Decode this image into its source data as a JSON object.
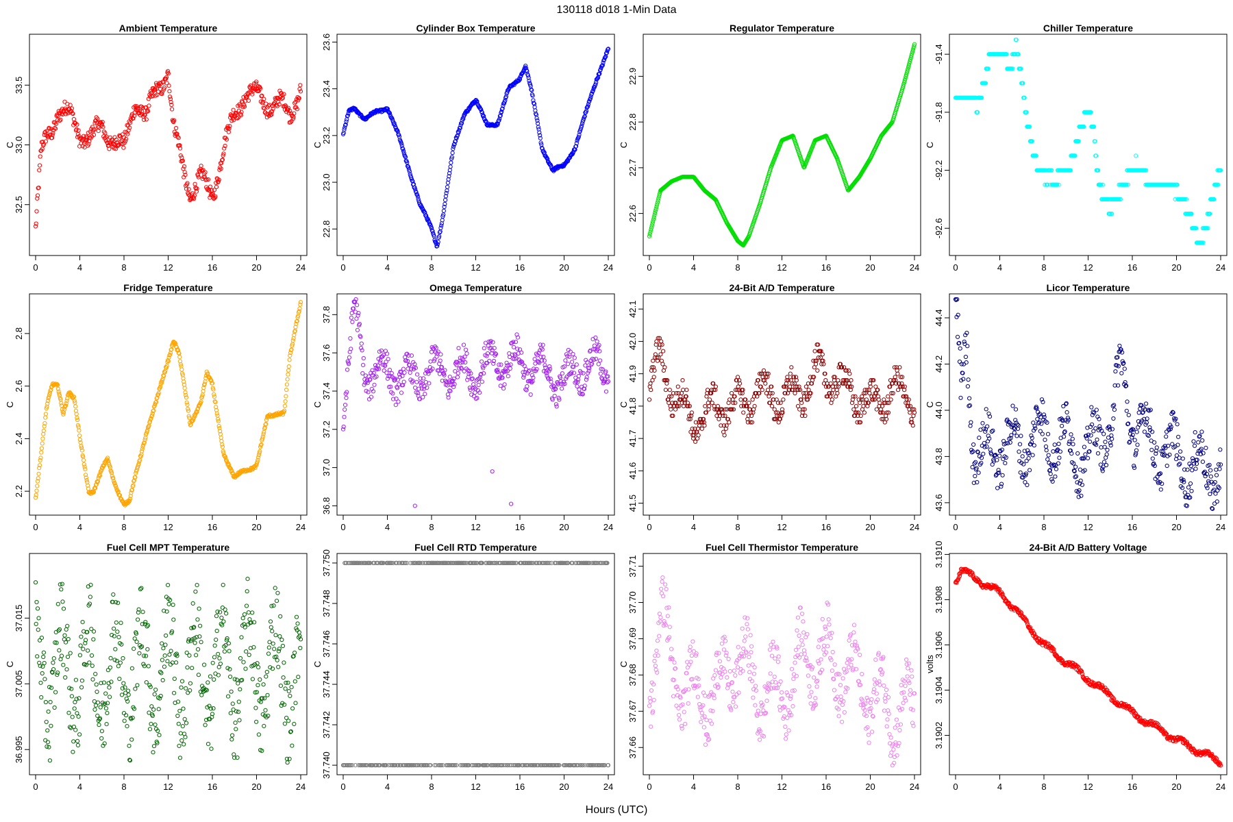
{
  "figure": {
    "title": "130118   d018   1-Min Data",
    "xlabel": "Hours (UTC)"
  },
  "chart_data": [
    {
      "type": "scatter",
      "title": "Ambient Temperature",
      "ylabel": "C",
      "color": "#ff0000",
      "xlim": [
        0,
        24
      ],
      "xticks": [
        0,
        4,
        8,
        12,
        16,
        20,
        24
      ],
      "ylim": [
        32.12,
        33.88
      ],
      "yticks": [
        32.5,
        33.0,
        33.5
      ],
      "yfmt": 1,
      "series_keypoints": {
        "x": [
          0,
          0.5,
          1,
          1.5,
          2,
          3,
          4,
          5,
          6,
          7,
          8,
          9,
          10,
          11,
          12,
          12.5,
          13,
          14,
          15,
          16,
          17,
          18,
          19,
          20,
          21,
          22,
          23,
          24
        ],
        "y": [
          32.3,
          32.9,
          33.05,
          33.15,
          33.3,
          33.25,
          33.1,
          33.05,
          33.15,
          33.05,
          32.95,
          33.4,
          33.2,
          33.5,
          33.6,
          33.1,
          32.95,
          32.6,
          32.7,
          32.6,
          32.95,
          33.25,
          33.45,
          33.4,
          33.35,
          33.35,
          33.25,
          33.5
        ]
      },
      "noise": 0.12
    },
    {
      "type": "scatter",
      "title": "Cylinder Box Temperature",
      "ylabel": "C",
      "color": "#0000ff",
      "xlim": [
        0,
        24
      ],
      "xticks": [
        0,
        4,
        8,
        12,
        16,
        20,
        24
      ],
      "ylim": [
        22.71,
        23.61
      ],
      "yticks": [
        22.8,
        23.0,
        23.2,
        23.4,
        23.6
      ],
      "yfmt": 1,
      "series_keypoints": {
        "x": [
          0,
          0.5,
          1,
          2,
          3,
          4,
          5,
          6,
          7,
          8,
          8.5,
          9,
          10,
          11,
          12,
          13,
          14,
          15,
          16,
          16.5,
          17,
          18,
          19,
          20,
          21,
          22,
          23,
          24
        ],
        "y": [
          23.2,
          23.3,
          23.32,
          23.27,
          23.3,
          23.32,
          23.2,
          23.05,
          22.9,
          22.8,
          22.73,
          22.85,
          23.15,
          23.3,
          23.35,
          23.25,
          23.25,
          23.4,
          23.45,
          23.5,
          23.4,
          23.15,
          23.05,
          23.07,
          23.15,
          23.3,
          23.45,
          23.57
        ]
      },
      "noise": 0.01
    },
    {
      "type": "scatter",
      "title": "Regulator Temperature",
      "ylabel": "C",
      "color": "#00dd00",
      "xlim": [
        0,
        24
      ],
      "xticks": [
        0,
        4,
        8,
        12,
        16,
        20,
        24
      ],
      "ylim": [
        22.52,
        22.98
      ],
      "yticks": [
        22.6,
        22.7,
        22.8,
        22.9
      ],
      "yfmt": 1,
      "series_keypoints": {
        "x": [
          0,
          1,
          2,
          3,
          4,
          5,
          6,
          7,
          8,
          8.5,
          9,
          10,
          11,
          12,
          13,
          14,
          15,
          16,
          17,
          18,
          19,
          20,
          21,
          22,
          23,
          24
        ],
        "y": [
          22.55,
          22.65,
          22.67,
          22.68,
          22.68,
          22.65,
          22.63,
          22.58,
          22.54,
          22.53,
          22.55,
          22.62,
          22.7,
          22.76,
          22.77,
          22.7,
          22.76,
          22.77,
          22.72,
          22.65,
          22.68,
          22.72,
          22.77,
          22.8,
          22.88,
          22.97
        ]
      },
      "noise": 0.0
    },
    {
      "type": "scatter",
      "title": "Chiller Temperature",
      "ylabel": "C",
      "color": "#00ffff",
      "xlim": [
        0,
        24
      ],
      "xticks": [
        0,
        4,
        8,
        12,
        16,
        20,
        24
      ],
      "ylim": [
        -92.75,
        -91.3
      ],
      "yticks": [
        -92.6,
        -92.2,
        -91.8,
        -91.4
      ],
      "yfmt": 1,
      "series_keypoints": {
        "x": [
          0,
          1.5,
          2,
          2.5,
          3,
          4,
          5,
          5.5,
          6,
          6.5,
          7,
          8,
          9,
          10,
          11,
          12,
          12.5,
          13,
          14,
          15,
          16,
          17,
          18,
          19,
          20,
          21,
          22,
          23,
          24
        ],
        "y": [
          -91.7,
          -91.7,
          -91.8,
          -91.6,
          -91.4,
          -91.4,
          -91.5,
          -91.3,
          -91.6,
          -91.9,
          -92.1,
          -92.2,
          -92.3,
          -92.2,
          -92.0,
          -91.8,
          -91.9,
          -92.3,
          -92.5,
          -92.3,
          -92.2,
          -92.2,
          -92.3,
          -92.3,
          -92.3,
          -92.5,
          -92.7,
          -92.5,
          -92.2
        ]
      },
      "noise": 0.05,
      "step": 0.1
    },
    {
      "type": "scatter",
      "title": "Fridge Temperature",
      "ylabel": "C",
      "color": "#ffa500",
      "xlim": [
        0,
        24
      ],
      "xticks": [
        0,
        4,
        8,
        12,
        16,
        20,
        24
      ],
      "ylim": [
        2.13,
        2.93
      ],
      "yticks": [
        2.2,
        2.4,
        2.6,
        2.8
      ],
      "yfmt": 1,
      "series_keypoints": {
        "x": [
          0,
          0.5,
          1,
          1.5,
          2,
          2.5,
          3,
          3.5,
          4,
          4.8,
          5.2,
          6,
          6.5,
          7,
          8,
          8.5,
          9,
          10,
          11,
          12,
          12.5,
          13,
          14,
          15,
          15.5,
          16,
          17,
          18,
          19,
          20,
          21,
          22,
          22.5,
          23,
          24
        ],
        "y": [
          2.18,
          2.35,
          2.52,
          2.6,
          2.6,
          2.5,
          2.58,
          2.55,
          2.4,
          2.2,
          2.2,
          2.28,
          2.32,
          2.25,
          2.15,
          2.16,
          2.25,
          2.42,
          2.55,
          2.7,
          2.78,
          2.72,
          2.45,
          2.55,
          2.65,
          2.6,
          2.35,
          2.25,
          2.28,
          2.3,
          2.48,
          2.5,
          2.5,
          2.7,
          2.92
        ]
      },
      "noise": 0.01
    },
    {
      "type": "scatter",
      "title": "Omega Temperature",
      "ylabel": "C",
      "color": "#a020f0",
      "xlim": [
        0,
        24
      ],
      "xticks": [
        0,
        4,
        8,
        12,
        16,
        20,
        24
      ],
      "ylim": [
        36.78,
        37.88
      ],
      "yticks": [
        36.8,
        37.0,
        37.2,
        37.4,
        37.6,
        37.8
      ],
      "yfmt": 1,
      "series_keypoints": {
        "x": [
          0,
          1,
          2,
          4,
          6,
          8,
          10,
          12,
          14,
          16,
          18,
          20,
          22,
          24
        ],
        "y": [
          37.3,
          37.8,
          37.5,
          37.5,
          37.45,
          37.5,
          37.5,
          37.5,
          37.55,
          37.55,
          37.5,
          37.45,
          37.55,
          37.5
        ]
      },
      "noise": 0.14,
      "outliers": [
        [
          6.5,
          36.8
        ],
        [
          13.5,
          36.98
        ],
        [
          15.2,
          36.81
        ]
      ]
    },
    {
      "type": "scatter",
      "title": "24-Bit A/D Temperature",
      "ylabel": "C",
      "color": "#8b0000",
      "xlim": [
        0,
        24
      ],
      "xticks": [
        0,
        4,
        8,
        12,
        16,
        20,
        24
      ],
      "ylim": [
        41.48,
        42.13
      ],
      "yticks": [
        41.5,
        41.6,
        41.7,
        41.8,
        41.9,
        42.0,
        42.1
      ],
      "yfmt": 1,
      "series_keypoints": {
        "x": [
          0,
          1,
          2,
          4,
          6,
          8,
          10,
          12,
          14,
          15,
          16,
          18,
          20,
          22,
          24
        ],
        "y": [
          41.85,
          41.95,
          41.85,
          41.75,
          41.8,
          41.8,
          41.85,
          41.82,
          41.85,
          41.9,
          41.9,
          41.85,
          41.8,
          41.85,
          41.82
        ]
      },
      "noise": 0.08,
      "step": 0.01
    },
    {
      "type": "scatter",
      "title": "Licor Temperature",
      "ylabel": "C",
      "color": "#000080",
      "xlim": [
        0,
        24
      ],
      "xticks": [
        0,
        4,
        8,
        12,
        16,
        20,
        24
      ],
      "ylim": [
        43.57,
        44.48
      ],
      "yticks": [
        43.6,
        43.8,
        44.0,
        44.2,
        44.4
      ],
      "yfmt": 1,
      "series_keypoints": {
        "x": [
          0,
          0.5,
          1,
          1.5,
          2,
          4,
          6,
          8,
          10,
          12,
          14,
          15,
          16,
          18,
          20,
          22,
          24
        ],
        "y": [
          44.45,
          44.0,
          44.3,
          43.9,
          43.8,
          43.85,
          43.85,
          43.9,
          43.85,
          43.8,
          43.95,
          44.15,
          43.95,
          43.85,
          43.8,
          43.75,
          43.75
        ]
      },
      "noise": 0.18
    },
    {
      "type": "scatter",
      "title": "Fuel Cell MPT Temperature",
      "ylabel": "C",
      "color": "#006400",
      "xlim": [
        0,
        24
      ],
      "xticks": [
        0,
        4,
        8,
        12,
        16,
        20,
        24
      ],
      "ylim": [
        36.992,
        37.024
      ],
      "yticks": [
        36.995,
        37.005,
        37.015
      ],
      "yfmt": 3,
      "series_keypoints": {
        "x": [
          0,
          24
        ],
        "y": [
          37.007,
          37.007
        ]
      },
      "noise": 0.013
    },
    {
      "type": "scatter",
      "title": "Fuel Cell RTD Temperature",
      "ylabel": "C",
      "color": "#808080",
      "xlim": [
        0,
        24
      ],
      "xticks": [
        0,
        4,
        8,
        12,
        16,
        20,
        24
      ],
      "ylim": [
        37.7398,
        37.7502
      ],
      "yticks": [
        37.74,
        37.742,
        37.744,
        37.746,
        37.748,
        37.75
      ],
      "yfmt": 3,
      "levels": [
        37.74,
        37.75
      ]
    },
    {
      "type": "scatter",
      "title": "Fuel Cell Thermistor Temperature",
      "ylabel": "C",
      "color": "#ee82ee",
      "xlim": [
        0,
        24
      ],
      "xticks": [
        0,
        4,
        8,
        12,
        16,
        20,
        24
      ],
      "ylim": [
        37.654,
        37.712
      ],
      "yticks": [
        37.66,
        37.67,
        37.68,
        37.69,
        37.7,
        37.71
      ],
      "yfmt": 2,
      "series_keypoints": {
        "x": [
          0,
          1,
          2,
          4,
          6,
          8,
          10,
          12,
          14,
          16,
          18,
          20,
          22,
          24
        ],
        "y": [
          37.675,
          37.7,
          37.68,
          37.675,
          37.675,
          37.685,
          37.675,
          37.675,
          37.685,
          37.685,
          37.68,
          37.675,
          37.67,
          37.67
        ]
      },
      "noise": 0.014
    },
    {
      "type": "scatter",
      "title": "24-Bit A/D Battery Voltage",
      "ylabel": "volts",
      "color": "#ff0000",
      "xlim": [
        0,
        24
      ],
      "xticks": [
        0,
        4,
        8,
        12,
        16,
        20,
        24
      ],
      "ylim": [
        3.19005,
        3.19098
      ],
      "yticks": [
        3.1902,
        3.1904,
        3.1906,
        3.1908,
        3.191
      ],
      "yfmt": 4,
      "series_keypoints": {
        "x": [
          0,
          0.5,
          4,
          5,
          8,
          12,
          16,
          20,
          24
        ],
        "y": [
          3.19088,
          3.19093,
          3.19083,
          3.19078,
          3.1906,
          3.19045,
          3.1903,
          3.19018,
          3.19008
        ]
      },
      "noise": 2e-05
    }
  ]
}
